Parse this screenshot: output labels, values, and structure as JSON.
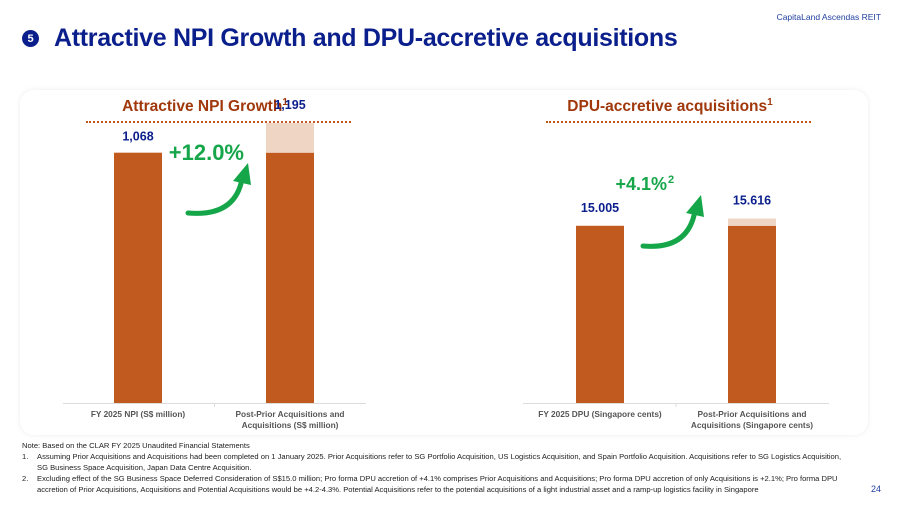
{
  "header": {
    "brand": "CapitaLand Ascendas REIT",
    "section_number": "5",
    "title": "Attractive NPI Growth and DPU-accretive acquisitions"
  },
  "colors": {
    "base_bar": "#c05a1f",
    "increment_bar": "#efd6c4",
    "value_label": "#0b1f8c",
    "growth": "#16a64a",
    "chart_title": "#a0380c"
  },
  "chart_data": [
    {
      "type": "bar",
      "stacked": true,
      "title": "Attractive NPI Growth",
      "title_footnote": "1",
      "categories": [
        "FY 2025 NPI (S$ million)",
        "Post-Prior Acquisitions and Acquisitions (S$ million)"
      ],
      "series": [
        {
          "name": "Base",
          "values": [
            1068,
            1068
          ]
        },
        {
          "name": "Increment",
          "values": [
            0,
            127
          ]
        }
      ],
      "totals": [
        1068,
        1195
      ],
      "total_labels": [
        "1,068",
        "1,195"
      ],
      "growth_label": "+12.0%",
      "growth_footnote": "",
      "ylim": [
        0,
        1280
      ],
      "xlabel": "",
      "ylabel": ""
    },
    {
      "type": "bar",
      "stacked": true,
      "title": "DPU-accretive acquisitions",
      "title_footnote": "1",
      "categories": [
        "FY 2025 DPU (Singapore cents)",
        "Post-Prior Acquisitions and Acquisitions (Singapore cents)"
      ],
      "series": [
        {
          "name": "Base",
          "values": [
            15.005,
            15.005
          ]
        },
        {
          "name": "Increment",
          "values": [
            0,
            0.611
          ]
        }
      ],
      "totals": [
        15.005,
        15.616
      ],
      "total_labels": [
        "15.005",
        "15.616"
      ],
      "growth_label": "+4.1%",
      "growth_footnote": "2",
      "ylim": [
        0,
        25.4
      ],
      "xlabel": "",
      "ylabel": ""
    }
  ],
  "notes": {
    "intro": "Note: Based on the CLAR FY 2025 Unaudited Financial Statements",
    "items": [
      {
        "n": "1.",
        "text": "Assuming Prior Acquisitions and Acquisitions had been completed on 1 January 2025. Prior Acquisitions refer to SG Portfolio Acquisition, US Logistics Acquisition, and Spain Portfolio Acquisition. Acquisitions refer to SG Logistics Acquisition, SG Business Space Acquisition, Japan Data Centre Acquisition."
      },
      {
        "n": "2.",
        "text": "Excluding effect of the SG Business Space Deferred Consideration of S$15.0 million; Pro forma DPU accretion of +4.1% comprises Prior Acquisitions and Acquisitions; Pro forma DPU accretion of only Acquisitions is +2.1%; Pro forma DPU accretion of Prior Acquisitions, Acquisitions and Potential Acquisitions would be +4.2-4.3%. Potential Acquisitions refer to the potential acquisitions of a light industrial asset and a ramp-up logistics facility in Singapore"
      }
    ]
  },
  "page_number": "24"
}
